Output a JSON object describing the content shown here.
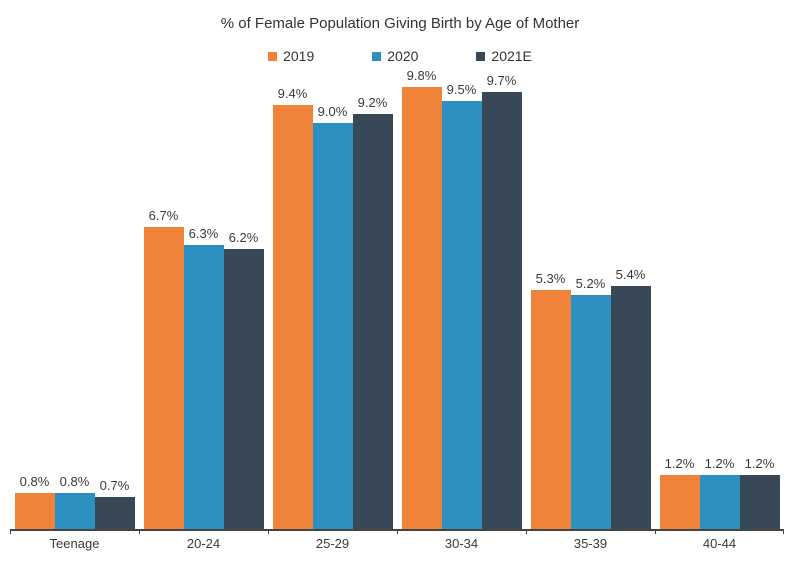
{
  "title": "% of Female Population Giving Birth by Age of Mother",
  "chart_data": {
    "type": "bar",
    "title": "% of Female Population Giving Birth by Age of Mother",
    "categories": [
      "Teenage",
      "20-24",
      "25-29",
      "30-34",
      "35-39",
      "40-44"
    ],
    "series": [
      {
        "name": "2019",
        "color": "#EE8339",
        "values": [
          0.8,
          6.7,
          9.4,
          9.8,
          5.3,
          1.2
        ],
        "labels": [
          "0.8%",
          "6.7%",
          "9.4%",
          "9.8%",
          "5.3%",
          "1.2%"
        ]
      },
      {
        "name": "2020",
        "color": "#2C90C1",
        "values": [
          0.8,
          6.3,
          9.0,
          9.5,
          5.2,
          1.2
        ],
        "labels": [
          "0.8%",
          "6.3%",
          "9.0%",
          "9.5%",
          "5.2%",
          "1.2%"
        ]
      },
      {
        "name": "2021E",
        "color": "#384856",
        "values": [
          0.7,
          6.2,
          9.2,
          9.7,
          5.4,
          1.2
        ],
        "labels": [
          "0.7%",
          "6.2%",
          "9.2%",
          "9.7%",
          "5.4%",
          "1.2%"
        ]
      }
    ],
    "xlabel": "",
    "ylabel": "",
    "ylim": [
      0,
      10.3
    ],
    "grid": false,
    "legend_position": "top",
    "data_labels_visible": true,
    "axis_color": "#444444",
    "text_color": "#3a3a3a"
  }
}
